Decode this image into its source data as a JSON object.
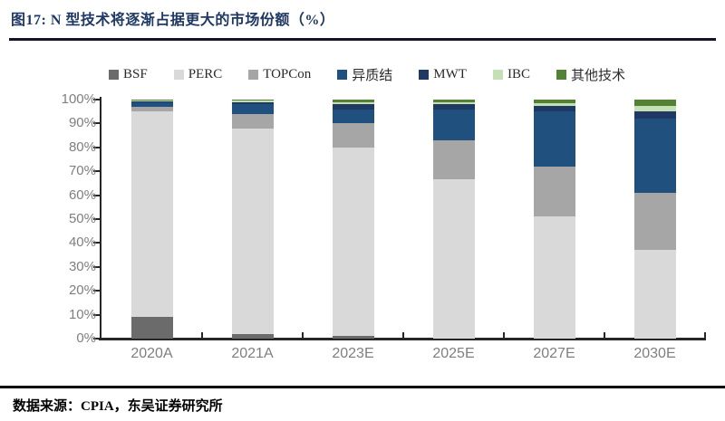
{
  "header": {
    "title": "图17:  N 型技术将逐渐占据更大的市场份额（%）",
    "title_color": "#1F3864"
  },
  "footer": {
    "source": "数据来源：CPIA，东吴证券研究所"
  },
  "axis": {
    "line_color": "#262626",
    "label_color": "#7f7f7f",
    "y_tick_labels": [
      "0%",
      "10%",
      "20%",
      "30%",
      "40%",
      "50%",
      "60%",
      "70%",
      "80%",
      "90%",
      "100%"
    ]
  },
  "chart_data": {
    "type": "bar",
    "subtype": "stacked-100",
    "title": "图17: N 型技术将逐渐占据更大的市场份额（%）",
    "xlabel": "",
    "ylabel": "",
    "ylim": [
      0,
      100
    ],
    "y_tick_step": 10,
    "grid": false,
    "legend_position": "top",
    "categories": [
      "2020A",
      "2021A",
      "2023E",
      "2025E",
      "2027E",
      "2030E"
    ],
    "series": [
      {
        "name": "BSF",
        "color": "#6b6b6b",
        "values": [
          9,
          2,
          1,
          0,
          0,
          0
        ]
      },
      {
        "name": "PERC",
        "color": "#d9d9d9",
        "values": [
          86,
          86,
          79,
          66.5,
          51,
          37
        ]
      },
      {
        "name": "TOPCon",
        "color": "#a6a6a6",
        "values": [
          2,
          6,
          10,
          16.5,
          21,
          24
        ]
      },
      {
        "name": "异质结",
        "color": "#20507e",
        "values": [
          2,
          4,
          6,
          13,
          23,
          31
        ]
      },
      {
        "name": "MWT",
        "color": "#1f3864",
        "values": [
          0.3,
          1,
          2,
          2,
          2.5,
          3
        ]
      },
      {
        "name": "IBC",
        "color": "#c5e0b4",
        "values": [
          0.4,
          0.5,
          1,
          1,
          1,
          2.5
        ]
      },
      {
        "name": "其他技术",
        "color": "#538135",
        "values": [
          0.3,
          0.5,
          1,
          1,
          1.5,
          2.5
        ]
      }
    ]
  }
}
